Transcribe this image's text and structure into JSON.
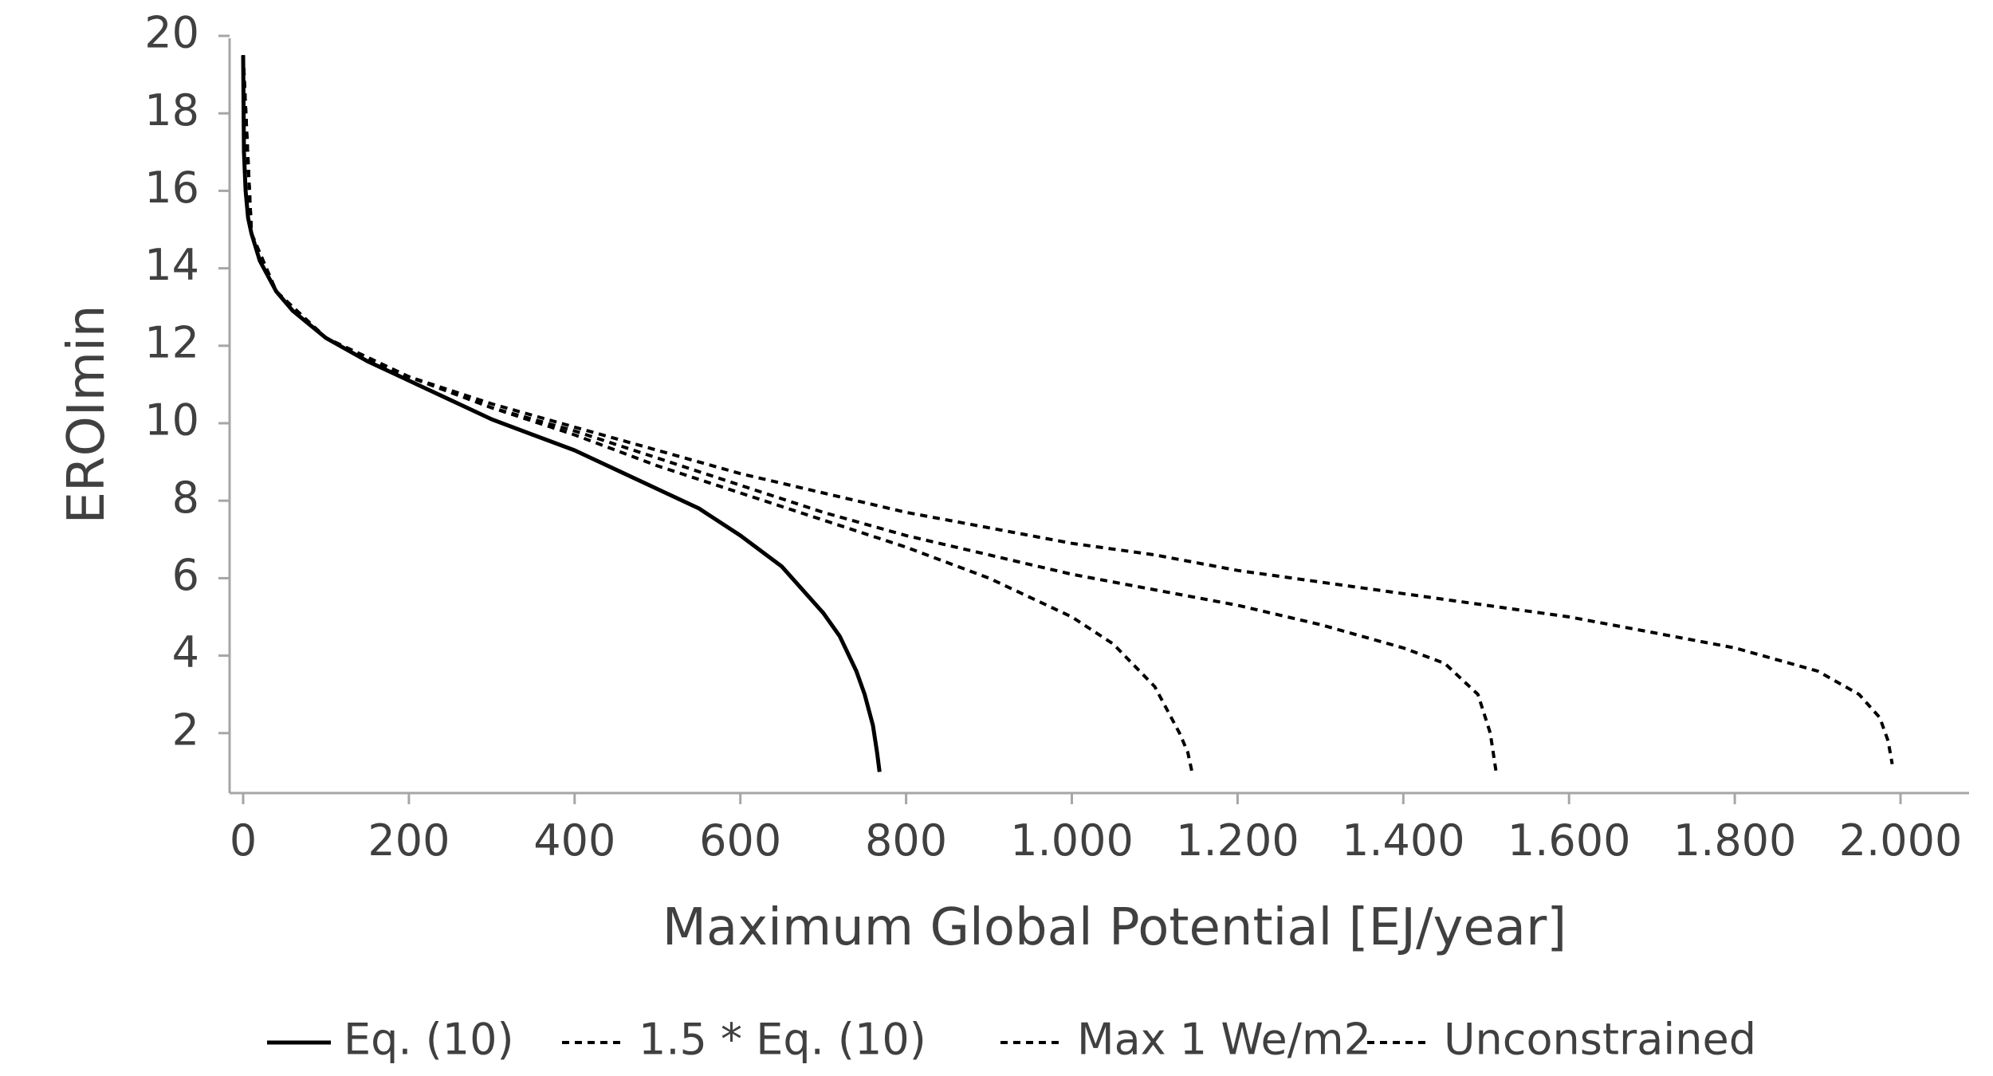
{
  "chart_data": {
    "type": "line",
    "title": "",
    "xlabel": "Maximum Global Potential [EJ/year]",
    "ylabel": "EROImin",
    "xlim": [
      0,
      2080
    ],
    "ylim": [
      0,
      20
    ],
    "grid": false,
    "legend_position": "bottom",
    "x_ticks": [
      0,
      200,
      400,
      600,
      800,
      1000,
      1200,
      1400,
      1600,
      1800,
      2000
    ],
    "x_tick_labels": [
      "0",
      "200",
      "400",
      "600",
      "800",
      "1.000",
      "1.200",
      "1.400",
      "1.600",
      "1.800",
      "2.000"
    ],
    "y_ticks": [
      2,
      4,
      6,
      8,
      10,
      12,
      14,
      16,
      18,
      20
    ],
    "y_tick_labels": [
      "2",
      "4",
      "6",
      "8",
      "10",
      "12",
      "14",
      "16",
      "18",
      "20"
    ],
    "series": [
      {
        "name": "Eq. (10)",
        "style": "solid",
        "x": [
          0,
          1,
          3,
          6,
          10,
          20,
          40,
          60,
          100,
          150,
          200,
          250,
          300,
          350,
          400,
          450,
          500,
          550,
          600,
          650,
          700,
          720,
          740,
          750,
          760,
          765,
          768
        ],
        "y": [
          19.5,
          17.0,
          16.0,
          15.3,
          14.9,
          14.2,
          13.4,
          12.9,
          12.2,
          11.6,
          11.1,
          10.6,
          10.1,
          9.7,
          9.3,
          8.8,
          8.3,
          7.8,
          7.1,
          6.3,
          5.1,
          4.5,
          3.6,
          3.0,
          2.2,
          1.5,
          1.0
        ]
      },
      {
        "name": "1.5 * Eq. (10)",
        "style": "dotted",
        "x": [
          0,
          10,
          40,
          100,
          200,
          300,
          400,
          500,
          600,
          700,
          800,
          900,
          1000,
          1050,
          1100,
          1130,
          1140,
          1145
        ],
        "y": [
          19.5,
          14.9,
          13.4,
          12.2,
          11.2,
          10.4,
          9.7,
          8.9,
          8.2,
          7.5,
          6.8,
          6.0,
          5.0,
          4.3,
          3.2,
          2.0,
          1.5,
          1.0
        ]
      },
      {
        "name": "Max 1 We/m2",
        "style": "dotted",
        "x": [
          0,
          10,
          40,
          100,
          200,
          300,
          400,
          500,
          600,
          700,
          800,
          900,
          1000,
          1100,
          1200,
          1300,
          1400,
          1450,
          1490,
          1505,
          1512
        ],
        "y": [
          19.5,
          14.9,
          13.4,
          12.2,
          11.2,
          10.4,
          9.8,
          9.1,
          8.4,
          7.7,
          7.1,
          6.6,
          6.1,
          5.7,
          5.3,
          4.8,
          4.2,
          3.8,
          3.0,
          2.0,
          1.0
        ]
      },
      {
        "name": "Unconstrained",
        "style": "dotted",
        "x": [
          0,
          10,
          40,
          100,
          200,
          300,
          400,
          500,
          600,
          700,
          800,
          900,
          1000,
          1100,
          1200,
          1300,
          1400,
          1500,
          1600,
          1700,
          1800,
          1900,
          1950,
          1975,
          1985,
          1990
        ],
        "y": [
          19.5,
          14.9,
          13.4,
          12.2,
          11.2,
          10.5,
          9.9,
          9.3,
          8.7,
          8.2,
          7.7,
          7.3,
          6.9,
          6.6,
          6.2,
          5.9,
          5.6,
          5.3,
          5.0,
          4.6,
          4.2,
          3.6,
          3.0,
          2.4,
          1.8,
          1.2
        ]
      }
    ]
  }
}
